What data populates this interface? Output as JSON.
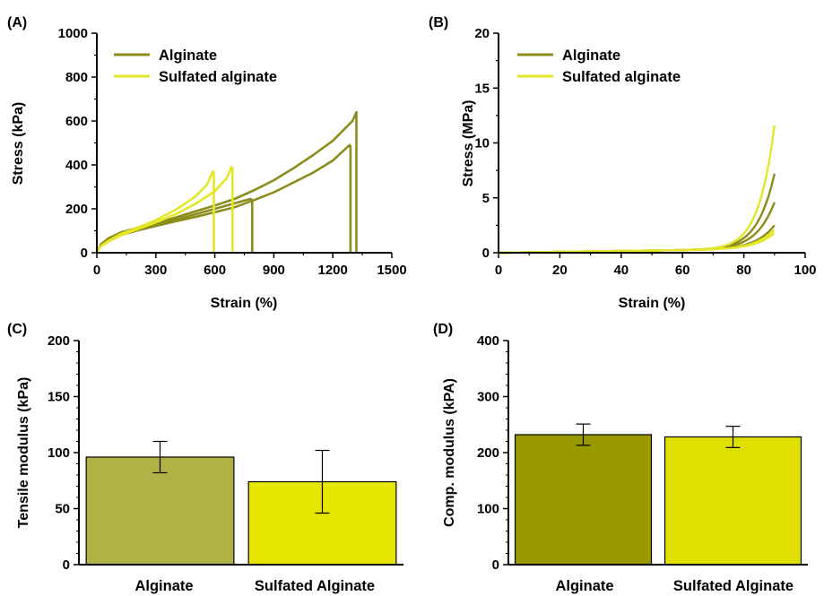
{
  "colors": {
    "alginate_line": "#8c8c1c",
    "sulfated_line": "#e4e628",
    "bar_c_alginate": "#b1b146",
    "bar_c_sulfated": "#e6e600",
    "bar_d_alginate": "#999900",
    "bar_d_sulfated": "#e0e000"
  },
  "chart_data": [
    {
      "panel": "(A)",
      "type": "line",
      "xlabel": "Strain (%)",
      "ylabel": "Stress (kPa)",
      "xlim": [
        0,
        1500
      ],
      "ylim": [
        0,
        1000
      ],
      "xticks": [
        "0",
        "300",
        "600",
        "900",
        "1200",
        "1500"
      ],
      "yticks": [
        "0",
        "200",
        "400",
        "600",
        "800",
        "1000"
      ],
      "legend": [
        "Alginate",
        "Sulfated alginate"
      ],
      "legend_position": "top-left",
      "series": [
        {
          "name": "Alginate",
          "color": "alginate_line",
          "x": [
            0,
            20,
            60,
            120,
            200,
            300,
            400,
            500,
            600,
            700,
            780,
            790,
            790
          ],
          "y": [
            0,
            35,
            62,
            85,
            105,
            128,
            150,
            175,
            200,
            225,
            245,
            240,
            0
          ]
        },
        {
          "name": "Alginate",
          "color": "alginate_line",
          "x": [
            0,
            20,
            60,
            120,
            200,
            300,
            400,
            500,
            600,
            700,
            800,
            900,
            1000,
            1100,
            1200,
            1285,
            1290,
            1290
          ],
          "y": [
            0,
            32,
            58,
            80,
            100,
            122,
            143,
            163,
            185,
            207,
            240,
            275,
            320,
            365,
            420,
            490,
            485,
            0
          ]
        },
        {
          "name": "Alginate",
          "color": "alginate_line",
          "x": [
            0,
            20,
            60,
            120,
            200,
            300,
            400,
            500,
            600,
            700,
            800,
            900,
            1000,
            1100,
            1200,
            1300,
            1320,
            1320
          ],
          "y": [
            0,
            38,
            66,
            92,
            112,
            135,
            160,
            188,
            215,
            245,
            285,
            330,
            385,
            445,
            510,
            600,
            640,
            0
          ]
        },
        {
          "name": "Sulfated alginate",
          "color": "sulfated_line",
          "x": [
            0,
            20,
            60,
            120,
            200,
            300,
            400,
            500,
            560,
            590,
            595,
            595
          ],
          "y": [
            0,
            30,
            55,
            85,
            112,
            148,
            195,
            255,
            310,
            370,
            365,
            0
          ]
        },
        {
          "name": "Sulfated alginate",
          "color": "sulfated_line",
          "x": [
            0,
            20,
            60,
            120,
            200,
            300,
            400,
            500,
            600,
            660,
            685,
            690,
            690
          ],
          "y": [
            0,
            28,
            52,
            78,
            105,
            138,
            175,
            222,
            280,
            340,
            390,
            385,
            0
          ]
        }
      ]
    },
    {
      "panel": "(B)",
      "type": "line",
      "xlabel": "Strain (%)",
      "ylabel": "Stress (MPa)",
      "xlim": [
        0,
        100
      ],
      "ylim": [
        0,
        20
      ],
      "xticks": [
        "0",
        "20",
        "40",
        "60",
        "80",
        "100"
      ],
      "yticks": [
        "0",
        "5",
        "10",
        "15",
        "20"
      ],
      "legend": [
        "Alginate",
        "Sulfated alginate"
      ],
      "legend_position": "top-left",
      "series": [
        {
          "name": "Alginate",
          "color": "alginate_line",
          "max": 7.2
        },
        {
          "name": "Alginate",
          "color": "alginate_line",
          "max": 4.6
        },
        {
          "name": "Alginate",
          "color": "alginate_line",
          "max": 2.5
        },
        {
          "name": "Sulfated alginate",
          "color": "sulfated_line",
          "max": 11.6
        },
        {
          "name": "Sulfated alginate",
          "color": "sulfated_line",
          "max": 2.1
        },
        {
          "name": "Sulfated alginate",
          "color": "sulfated_line",
          "max": 1.8
        }
      ]
    },
    {
      "panel": "(C)",
      "type": "bar",
      "ylabel": "Tensile modulus (kPa)",
      "ylim": [
        0,
        200
      ],
      "yticks": [
        "0",
        "50",
        "100",
        "150",
        "200"
      ],
      "categories": [
        "Alginate",
        "Sulfated Alginate"
      ],
      "values": [
        96,
        74
      ],
      "errors": [
        14,
        28
      ],
      "colors": [
        "bar_c_alginate",
        "bar_c_sulfated"
      ]
    },
    {
      "panel": "(D)",
      "type": "bar",
      "ylabel": "Comp. modulus (kPA)",
      "ylim": [
        0,
        400
      ],
      "yticks": [
        "0",
        "100",
        "200",
        "300",
        "400"
      ],
      "categories": [
        "Alginate",
        "Sulfated Alginate"
      ],
      "values": [
        232,
        228
      ],
      "errors": [
        19,
        19
      ],
      "colors": [
        "bar_d_alginate",
        "bar_d_sulfated"
      ]
    }
  ]
}
